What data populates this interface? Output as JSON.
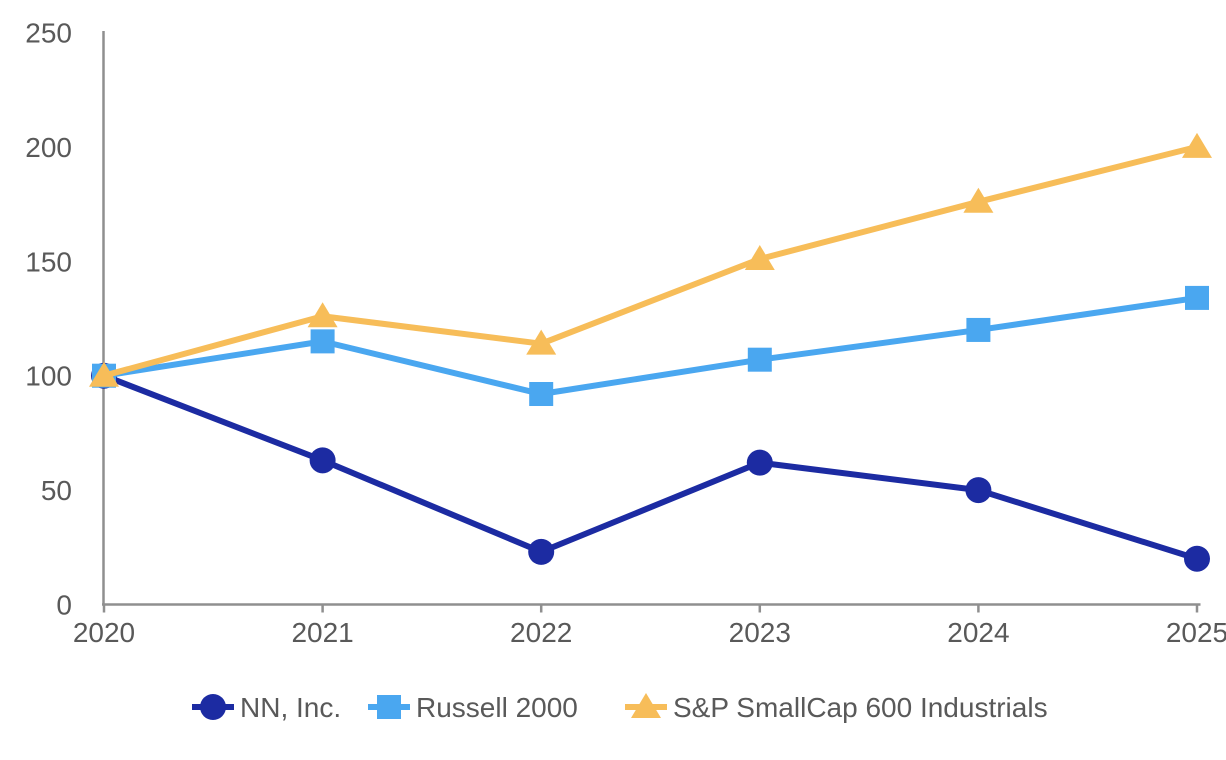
{
  "chart_data": {
    "type": "line",
    "title": "",
    "xlabel": "",
    "ylabel": "",
    "x": [
      "2020",
      "2021",
      "2022",
      "2023",
      "2024",
      "2025"
    ],
    "series": [
      {
        "name": "NN, Inc.",
        "marker": "circle",
        "color": "#1c2ba2",
        "values": [
          100,
          63,
          23,
          62,
          50,
          20
        ]
      },
      {
        "name": "Russell 2000",
        "marker": "square",
        "color": "#4aa7f0",
        "values": [
          100,
          115,
          92,
          107,
          120,
          134
        ]
      },
      {
        "name": "S&P SmallCap 600 Industrials",
        "marker": "triangle",
        "color": "#f7bd59",
        "values": [
          100,
          126,
          114,
          151,
          176,
          200
        ]
      }
    ],
    "ylim": [
      0,
      250
    ],
    "yticks": [
      0,
      50,
      100,
      150,
      200,
      250
    ],
    "grid": false,
    "legend_position": "bottom"
  },
  "style_colors": {
    "axis": "#8f8f8f",
    "tick_label": "#595959",
    "legend_label": "#595959",
    "background": "#ffffff"
  }
}
